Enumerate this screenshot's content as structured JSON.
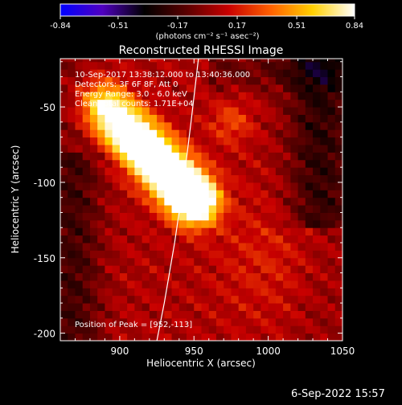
{
  "colorbar": {
    "ticks": [
      "-0.84",
      "-0.51",
      "-0.17",
      "0.17",
      "0.51",
      "0.84"
    ],
    "units_label": "(photons cm⁻² s⁻¹ asec⁻²)",
    "colors": [
      "#0000ff",
      "#5000c0",
      "#000000",
      "#5a0000",
      "#c80000",
      "#ff6000",
      "#ffd000",
      "#ffffff"
    ]
  },
  "chart_data": {
    "type": "heatmap",
    "title": "Reconstructed RHESSI Image",
    "xlabel": "Heliocentric X (arcsec)",
    "ylabel": "Heliocentric Y (arcsec)",
    "xlim": [
      860,
      1050
    ],
    "ylim": [
      -205,
      -18
    ],
    "xticks": [
      "900",
      "950",
      "1000",
      "1050"
    ],
    "xtick_values": [
      900,
      950,
      1000,
      1050
    ],
    "yticks": [
      "-50",
      "-100",
      "-150",
      "-200"
    ],
    "ytick_values": [
      -50,
      -100,
      -150,
      -200
    ],
    "value_range": [
      -0.84,
      0.84
    ],
    "info_lines": [
      "10-Sep-2017 13:38:12.000 to 13:40:36.000",
      "Detectors: 3F 6F 8F, Att 0",
      "Energy Range: 3.0 - 6.0 keV",
      "Clean    Total counts: 1.71E+04"
    ],
    "peak_label": "Position of Peak = [952,-113]",
    "peak": [
      952,
      -113
    ],
    "limb_curve": [
      [
        953,
        -18
      ],
      [
        948,
        -60
      ],
      [
        943,
        -100
      ],
      [
        937,
        -140
      ],
      [
        930,
        -180
      ],
      [
        925,
        -205
      ]
    ]
  },
  "footer": {
    "timestamp": "6-Sep-2022 15:57"
  }
}
